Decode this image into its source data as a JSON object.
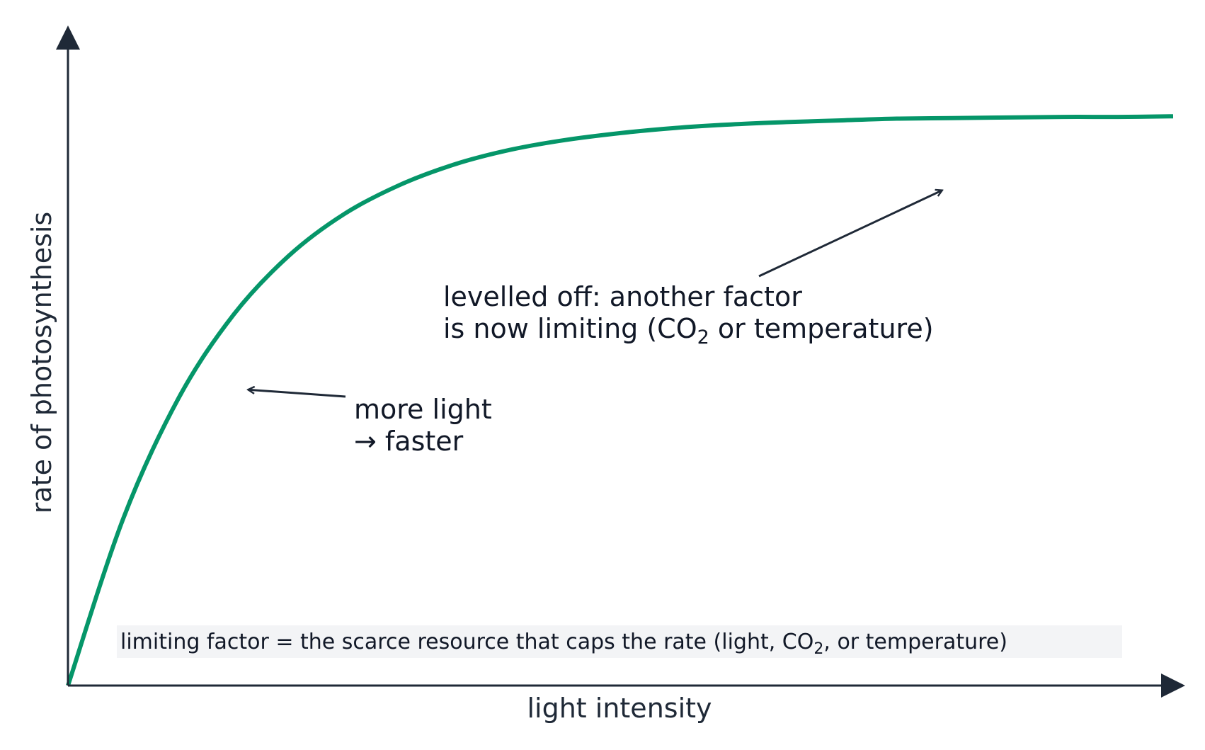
{
  "chart_data": {
    "type": "line",
    "title": "",
    "xlabel": "light intensity",
    "ylabel": "rate of photosynthesis",
    "xlim": [
      0,
      100
    ],
    "ylim": [
      0,
      100
    ],
    "grid": false,
    "axis_ticks": false,
    "series": [
      {
        "color": "#059669",
        "x": [
          0,
          5,
          10,
          15,
          20,
          25,
          30,
          35,
          40,
          45,
          50,
          55,
          60,
          65,
          70,
          75,
          80,
          85,
          90,
          95,
          100
        ],
        "y": [
          0,
          28.9,
          49.7,
          64.2,
          74.4,
          81.6,
          86.6,
          90.2,
          92.7,
          94.4,
          95.6,
          96.5,
          97.1,
          97.5,
          97.8,
          98.1,
          98.2,
          98.3,
          98.4,
          98.4,
          98.5
        ]
      }
    ],
    "annotations": [
      {
        "id": "more-light",
        "lines": [
          "more light",
          "→ faster"
        ],
        "arrow_target": {
          "x": 16.3,
          "y": 51.2
        }
      },
      {
        "id": "levelled-off",
        "lines": [
          {
            "text": "levelled off: another factor"
          },
          {
            "pre": "is now limiting (CO",
            "sub": "2",
            "post": " or temperature)"
          }
        ],
        "arrow_target": {
          "x": 79.1,
          "y": 85.7
        }
      }
    ],
    "note": {
      "pre": "limiting factor = the scarce resource that caps the rate (light, CO",
      "sub": "2",
      "post": ", or temperature)"
    },
    "colors": {
      "axis": "#1f2937",
      "curve": "#059669",
      "note_bg": "#f3f4f6"
    }
  }
}
